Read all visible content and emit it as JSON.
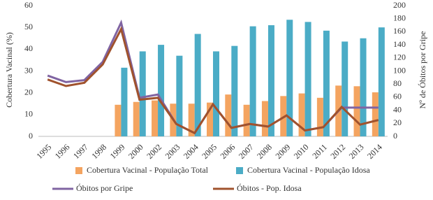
{
  "chart_data": {
    "type": "bar-line",
    "categories": [
      "1995",
      "1996",
      "1997",
      "1998",
      "1999",
      "2000",
      "2002",
      "2003",
      "2004",
      "2005",
      "2006",
      "2007",
      "2008",
      "2009",
      "2010",
      "2011",
      "2012",
      "2013",
      "2014"
    ],
    "series": [
      {
        "name": "Cobertura Vacinal - População Total",
        "color": "#f4a460",
        "kind": "bar",
        "axis": "y",
        "values": [
          null,
          null,
          null,
          null,
          14.5,
          15.8,
          16.5,
          15,
          15,
          15.5,
          19.2,
          14.5,
          16.2,
          18.5,
          19.7,
          17.7,
          23.3,
          23,
          20.2
        ]
      },
      {
        "name": "Cobertura Vacinal - População Idosa",
        "color": "#4bacc6",
        "kind": "bar",
        "axis": "y",
        "values": [
          null,
          null,
          null,
          null,
          31.5,
          39,
          42,
          37,
          47,
          39,
          41.5,
          50.5,
          51,
          53.5,
          52.5,
          48.5,
          43.5,
          45,
          50
        ]
      },
      {
        "name": "Óbitos por Gripe",
        "color": "#8064a2",
        "kind": "line",
        "axis": "y2",
        "values": [
          93,
          83,
          86,
          114,
          174,
          59,
          64,
          19,
          5,
          49,
          13,
          19,
          15,
          32,
          9,
          14,
          44,
          44,
          44
        ]
      },
      {
        "name": "Óbitos - Pop. Idosa",
        "color": "#a0522d",
        "kind": "line",
        "axis": "y2",
        "values": [
          87,
          77,
          82,
          110,
          164,
          56,
          59,
          19,
          5,
          49,
          13,
          19,
          15,
          32,
          9,
          14,
          45,
          18,
          25
        ]
      }
    ],
    "ylabel": "Cobertura Vacinal (%)",
    "y2label": "Nº de Óbitos por Gripe",
    "ylim": [
      0,
      60
    ],
    "yticks": [
      0,
      10,
      20,
      30,
      40,
      50,
      60
    ],
    "y2lim": [
      0,
      200
    ],
    "y2ticks": [
      0,
      20,
      40,
      60,
      80,
      100,
      120,
      140,
      160,
      180,
      200
    ],
    "grid": false,
    "legend": "bottom"
  }
}
